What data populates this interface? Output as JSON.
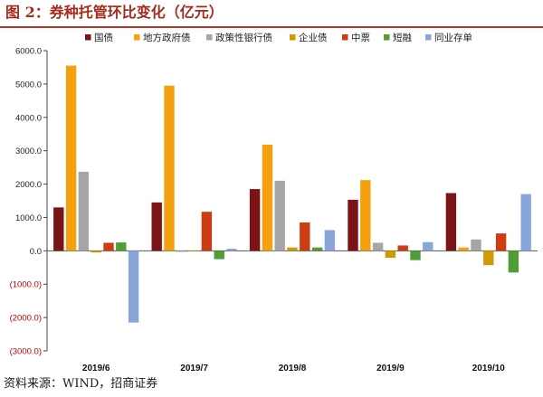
{
  "title": "图 2：券种托管环比变化（亿元）",
  "source": "资料来源：WIND，招商证券",
  "chart_data": {
    "type": "bar",
    "categories": [
      "2019/6",
      "2019/7",
      "2019/8",
      "2019/9",
      "2019/10"
    ],
    "ylim": [
      -3000,
      6000
    ],
    "yticks": [
      6000,
      5000,
      4000,
      3000,
      2000,
      1000,
      0,
      -1000,
      -2000,
      -3000
    ],
    "ytick_labels": [
      "6000.0",
      "5000.0",
      "4000.0",
      "3000.0",
      "2000.0",
      "1000.0",
      "0.0",
      "(1000.0)",
      "(2000.0)",
      "(3000.0)"
    ],
    "legend_position": "top",
    "grid": false,
    "series": [
      {
        "name": "国债",
        "color": "#7b1416",
        "values": [
          1300,
          1450,
          1850,
          1530,
          1730
        ]
      },
      {
        "name": "地方政府债",
        "color": "#f5a00e",
        "values": [
          5550,
          4950,
          3180,
          2120,
          100
        ]
      },
      {
        "name": "政策性银行债",
        "color": "#a6a6a6",
        "values": [
          2370,
          -30,
          2100,
          240,
          340
        ]
      },
      {
        "name": "企业债",
        "color": "#cf9a06",
        "values": [
          -50,
          0,
          100,
          -210,
          -430
        ]
      },
      {
        "name": "中票",
        "color": "#cc3d14",
        "values": [
          240,
          1170,
          850,
          160,
          520
        ]
      },
      {
        "name": "短融",
        "color": "#4f9d34",
        "values": [
          250,
          -250,
          100,
          -280,
          -650
        ]
      },
      {
        "name": "同业存单",
        "color": "#88a6d8",
        "values": [
          -2150,
          60,
          620,
          260,
          1700
        ]
      }
    ]
  }
}
